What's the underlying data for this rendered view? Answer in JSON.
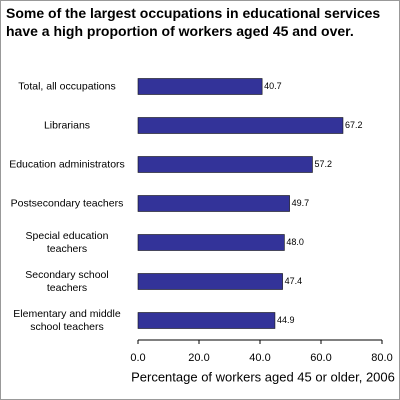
{
  "chart_data": {
    "type": "hbar",
    "title": "Some of the largest occupations in educational services have a high proportion of workers aged 45 and over.",
    "x_label": "Percentage of workers aged 45 or older, 2006",
    "categories": [
      "Total, all occupations",
      "Librarians",
      "Education administrators",
      "Postsecondary teachers",
      "Special education teachers",
      "Secondary school teachers",
      "Elementary and middle school teachers"
    ],
    "values": [
      40.7,
      67.2,
      57.2,
      49.7,
      48.0,
      47.4,
      44.9
    ],
    "value_labels": [
      "40.7",
      "67.2",
      "57.2",
      "49.7",
      "48.0",
      "47.4",
      "44.9"
    ],
    "color": "#333399",
    "xlim": [
      0,
      80
    ],
    "xticks": [
      {
        "value": 0,
        "label": "0.0"
      },
      {
        "value": 20,
        "label": "20.0"
      },
      {
        "value": 40,
        "label": "40.0"
      },
      {
        "value": 60,
        "label": "60.0"
      },
      {
        "value": 80,
        "label": "80.0"
      }
    ]
  }
}
